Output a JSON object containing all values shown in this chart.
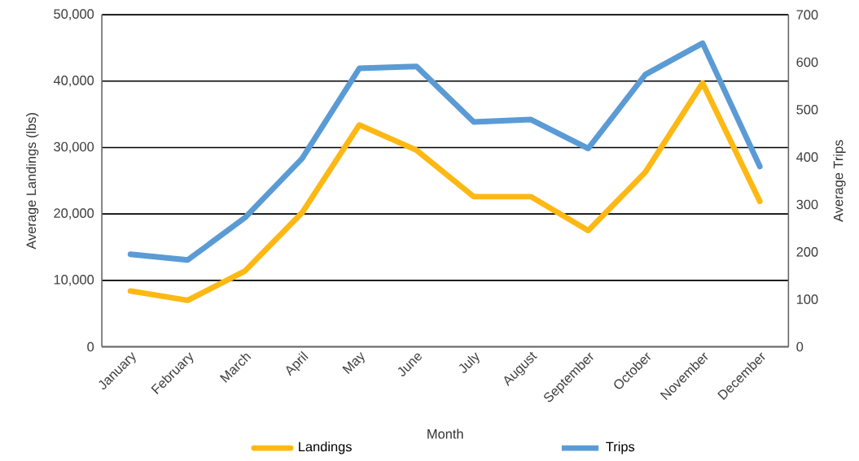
{
  "chart_data": {
    "type": "line",
    "xlabel": "Month",
    "ylabel": "Average Landings (lbs)",
    "y2label": "Average Trips",
    "categories": [
      "January",
      "February",
      "March",
      "April",
      "May",
      "June",
      "July",
      "August",
      "September",
      "October",
      "November",
      "December"
    ],
    "series": [
      {
        "name": "Landings",
        "color": "#fdb813",
        "values": [
          8400,
          7000,
          11400,
          20200,
          33400,
          29600,
          22600,
          22600,
          17500,
          26300,
          39700,
          21900
        ]
      },
      {
        "name": "Trips",
        "color": "#5b9bd5",
        "axis": "y2",
        "values": [
          195,
          183,
          272,
          397,
          587,
          591,
          474,
          479,
          418,
          574,
          640,
          380
        ]
      }
    ],
    "ylim": [
      0,
      50000
    ],
    "yticks": [
      0,
      {
        "value": 10000,
        "label": "10,000"
      },
      {
        "value": 20000,
        "label": "20,000"
      },
      {
        "value": 30000,
        "label": "30,000"
      },
      {
        "value": 40000,
        "label": "40,000"
      },
      {
        "value": 50000,
        "label": "50,000"
      }
    ],
    "y2lim": [
      0,
      700
    ],
    "y2ticks": [
      0,
      100,
      200,
      300,
      400,
      500,
      600,
      700
    ],
    "grid": "y",
    "legend": "bottom",
    "line_style": "solid"
  }
}
